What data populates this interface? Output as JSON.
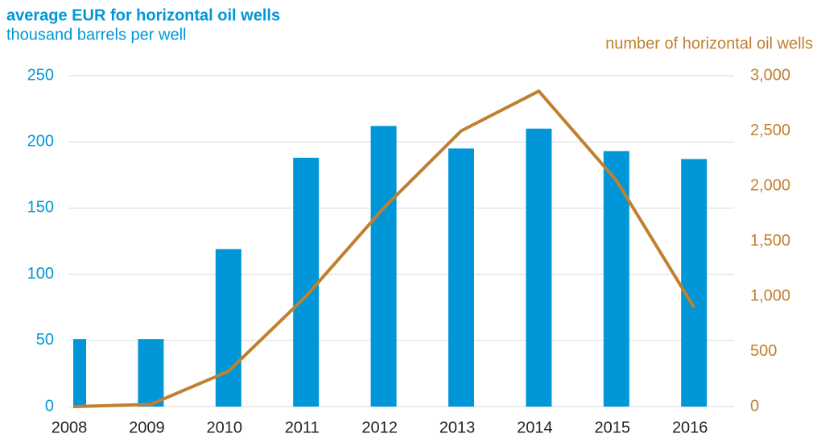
{
  "chart_data": {
    "type": "bar",
    "title": "average EUR for horizontal oil wells",
    "ylabel": "thousand barrels per well",
    "y2label": "number of horizontal oil wells",
    "categories": [
      "2008",
      "2009",
      "2010",
      "2011",
      "2012",
      "2013",
      "2014",
      "2015",
      "2016"
    ],
    "series": [
      {
        "name": "average EUR for horizontal oil wells",
        "type": "bar",
        "color": "#0096d7",
        "values": [
          51,
          51,
          119,
          188,
          212,
          195,
          210,
          193,
          187
        ]
      },
      {
        "name": "number of horizontal oil wells",
        "type": "line",
        "axis": "y2",
        "color": "#c0802f",
        "values": [
          0,
          20,
          320,
          1000,
          1800,
          2500,
          2860,
          2050,
          900
        ]
      }
    ],
    "ylim": [
      0,
      250
    ],
    "yticks": [
      0,
      50,
      100,
      150,
      200,
      250
    ],
    "y2lim": [
      0,
      3000
    ],
    "y2ticks": [
      0,
      500,
      {
        "value": 1000,
        "label": "1,000"
      },
      {
        "value": 1500,
        "label": "1,500"
      },
      {
        "value": 2000,
        "label": "2,000"
      },
      {
        "value": 2500,
        "label": "2,500"
      },
      {
        "value": 3000,
        "label": "3,000"
      }
    ],
    "grid": true
  }
}
